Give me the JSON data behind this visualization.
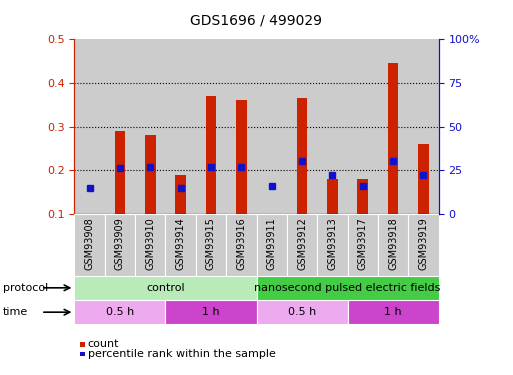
{
  "title": "GDS1696 / 499029",
  "samples": [
    "GSM93908",
    "GSM93909",
    "GSM93910",
    "GSM93914",
    "GSM93915",
    "GSM93916",
    "GSM93911",
    "GSM93912",
    "GSM93913",
    "GSM93917",
    "GSM93918",
    "GSM93919"
  ],
  "count_values": [
    0.1,
    0.29,
    0.28,
    0.19,
    0.37,
    0.36,
    0.1,
    0.365,
    0.18,
    0.18,
    0.445,
    0.26
  ],
  "percentile_values": [
    15,
    26,
    27,
    15,
    27,
    27,
    16,
    30,
    22,
    16,
    30,
    22
  ],
  "ylim_left": [
    0.1,
    0.5
  ],
  "ylim_right": [
    0,
    100
  ],
  "yticks_left": [
    0.1,
    0.2,
    0.3,
    0.4,
    0.5
  ],
  "ytick_labels_left": [
    "0.1",
    "0.2",
    "0.3",
    "0.4",
    "0.5"
  ],
  "yticks_right": [
    0,
    25,
    50,
    75,
    100
  ],
  "ytick_labels_right": [
    "0",
    "25",
    "50",
    "75",
    "100%"
  ],
  "bar_color": "#cc2200",
  "percentile_color": "#1111cc",
  "bar_bottom": 0.1,
  "protocol_labels": [
    {
      "text": "control",
      "start": 0,
      "end": 6,
      "color": "#b8ebb8"
    },
    {
      "text": "nanosecond pulsed electric fields",
      "start": 6,
      "end": 12,
      "color": "#44cc44"
    }
  ],
  "time_labels": [
    {
      "text": "0.5 h",
      "start": 0,
      "end": 3,
      "color": "#eeaaee"
    },
    {
      "text": "1 h",
      "start": 3,
      "end": 6,
      "color": "#cc44cc"
    },
    {
      "text": "0.5 h",
      "start": 6,
      "end": 9,
      "color": "#eeaaee"
    },
    {
      "text": "1 h",
      "start": 9,
      "end": 12,
      "color": "#cc44cc"
    }
  ],
  "protocol_label": "protocol",
  "time_label": "time",
  "legend_count": "count",
  "legend_percentile": "percentile rank within the sample",
  "bg_plot": "#ffffff",
  "bg_sample": "#cccccc",
  "bg_fig": "#ffffff"
}
